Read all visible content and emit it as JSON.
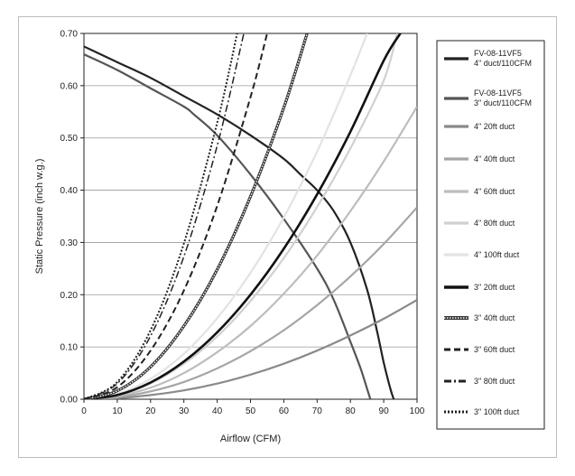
{
  "chart_data": {
    "type": "line",
    "title": "",
    "xlabel": "Airflow (CFM)",
    "ylabel": "Static Pressure (inch w.g.)",
    "xlim": [
      0,
      100
    ],
    "ylim": [
      0,
      0.7
    ],
    "xticks": [
      "0",
      "10",
      "20",
      "30",
      "40",
      "50",
      "60",
      "70",
      "80",
      "90",
      "100"
    ],
    "yticks": [
      "0.00",
      "0.10",
      "0.20",
      "0.30",
      "0.40",
      "0.50",
      "0.60",
      "0.70"
    ],
    "grid": "horizontal",
    "legend_position": "right",
    "series": [
      {
        "name": "FV-08-11VF5 4\" duct/110CFM",
        "label_lines": [
          "FV-08-11VF5",
          "4\" duct/110CFM"
        ],
        "color": "#222222",
        "width": 2.2,
        "dash": "",
        "double": false,
        "x": [
          0,
          10,
          20,
          30,
          40,
          50,
          60,
          65,
          70,
          75,
          80,
          85,
          88,
          90,
          92,
          93
        ],
        "y": [
          0.675,
          0.645,
          0.615,
          0.58,
          0.545,
          0.505,
          0.46,
          0.43,
          0.4,
          0.36,
          0.3,
          0.21,
          0.13,
          0.07,
          0.02,
          0.0
        ]
      },
      {
        "name": "FV-08-11VF5 3\" duct/110CFM",
        "label_lines": [
          "FV-08-11VF5",
          "3\" duct/110CFM"
        ],
        "color": "#555555",
        "width": 2.2,
        "dash": "",
        "double": false,
        "x": [
          0,
          10,
          20,
          30,
          33,
          40,
          50,
          60,
          70,
          75,
          80,
          83,
          85,
          86
        ],
        "y": [
          0.66,
          0.63,
          0.595,
          0.56,
          0.545,
          0.505,
          0.43,
          0.345,
          0.25,
          0.19,
          0.11,
          0.06,
          0.02,
          0.0
        ]
      },
      {
        "name": "4\" 20ft duct",
        "label_lines": [
          "4\" 20ft duct"
        ],
        "color": "#8a8a8a",
        "width": 2.2,
        "dash": "",
        "double": false,
        "x": [
          0,
          10,
          20,
          30,
          40,
          50,
          60,
          70,
          80,
          90,
          100
        ],
        "y": [
          0,
          0.002,
          0.008,
          0.017,
          0.03,
          0.047,
          0.068,
          0.093,
          0.122,
          0.154,
          0.19
        ]
      },
      {
        "name": "4\" 40ft duct",
        "label_lines": [
          "4\" 40ft duct"
        ],
        "color": "#a6a6a6",
        "width": 2.2,
        "dash": "",
        "double": false,
        "x": [
          0,
          10,
          20,
          30,
          40,
          50,
          60,
          70,
          80,
          90,
          100
        ],
        "y": [
          0,
          0.004,
          0.015,
          0.033,
          0.059,
          0.092,
          0.132,
          0.18,
          0.235,
          0.297,
          0.367
        ]
      },
      {
        "name": "4\" 60ft duct",
        "label_lines": [
          "4\" 60ft duct"
        ],
        "color": "#bdbdbd",
        "width": 2.2,
        "dash": "",
        "double": false,
        "x": [
          0,
          10,
          20,
          30,
          40,
          50,
          60,
          70,
          80,
          90,
          100
        ],
        "y": [
          0,
          0.006,
          0.022,
          0.05,
          0.09,
          0.14,
          0.202,
          0.275,
          0.36,
          0.455,
          0.56
        ]
      },
      {
        "name": "4\" 80ft duct",
        "label_lines": [
          "4\" 80ft duct"
        ],
        "color": "#d0d0d0",
        "width": 2.2,
        "dash": "",
        "double": false,
        "x": [
          0,
          10,
          20,
          30,
          40,
          50,
          60,
          70,
          80,
          90,
          94
        ],
        "y": [
          0,
          0.008,
          0.03,
          0.068,
          0.12,
          0.188,
          0.27,
          0.368,
          0.48,
          0.61,
          0.7
        ]
      },
      {
        "name": "4\" 100ft duct",
        "label_lines": [
          "4\" 100ft duct"
        ],
        "color": "#e3e3e3",
        "width": 2.2,
        "dash": "",
        "double": false,
        "x": [
          0,
          10,
          20,
          30,
          40,
          50,
          60,
          70,
          80,
          85
        ],
        "y": [
          0,
          0.01,
          0.039,
          0.087,
          0.155,
          0.242,
          0.348,
          0.474,
          0.62,
          0.7
        ]
      },
      {
        "name": "3\" 20ft duct",
        "label_lines": [
          "3\" 20ft duct"
        ],
        "color": "#111111",
        "width": 2.6,
        "dash": "",
        "double": false,
        "x": [
          0,
          10,
          20,
          30,
          40,
          50,
          60,
          70,
          80,
          90,
          95
        ],
        "y": [
          0,
          0.008,
          0.032,
          0.072,
          0.128,
          0.2,
          0.288,
          0.392,
          0.512,
          0.648,
          0.7
        ]
      },
      {
        "name": "3\" 40ft duct",
        "label_lines": [
          "3\" 40ft duct"
        ],
        "color": "#333333",
        "width": 3.2,
        "dash": "",
        "double": true,
        "x": [
          0,
          10,
          20,
          30,
          40,
          50,
          60,
          67
        ],
        "y": [
          0,
          0.016,
          0.062,
          0.14,
          0.248,
          0.388,
          0.558,
          0.7
        ]
      },
      {
        "name": "3\" 60ft duct",
        "label_lines": [
          "3\" 60ft duct"
        ],
        "color": "#222222",
        "width": 2.0,
        "dash": "7,4",
        "double": false,
        "x": [
          0,
          10,
          20,
          30,
          40,
          50,
          55
        ],
        "y": [
          0,
          0.023,
          0.093,
          0.208,
          0.37,
          0.578,
          0.7
        ]
      },
      {
        "name": "3\" 80ft duct",
        "label_lines": [
          "3\" 80ft duct"
        ],
        "color": "#222222",
        "width": 1.5,
        "dash": "8,3,2,3",
        "double": false,
        "x": [
          0,
          10,
          20,
          30,
          40,
          48
        ],
        "y": [
          0,
          0.03,
          0.121,
          0.273,
          0.485,
          0.7
        ]
      },
      {
        "name": "3\" 100ft duct",
        "label_lines": [
          "3\" 100ft duct"
        ],
        "color": "#222222",
        "width": 2.0,
        "dash": "2,2",
        "double": false,
        "x": [
          0,
          10,
          20,
          30,
          40,
          46
        ],
        "y": [
          0,
          0.033,
          0.132,
          0.298,
          0.529,
          0.7
        ]
      }
    ]
  }
}
